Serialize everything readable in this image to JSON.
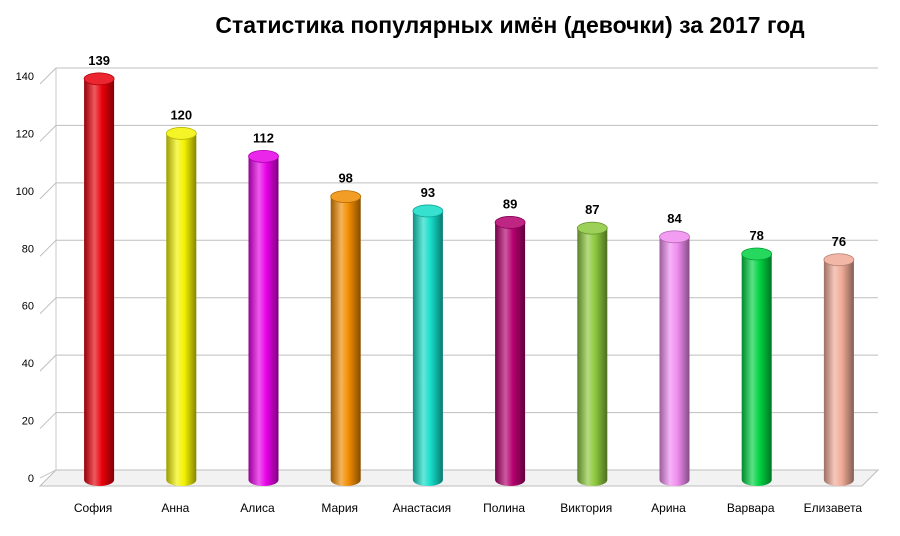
{
  "chart_data": {
    "type": "bar",
    "title": "Статистика популярных имён (девочки) за 2017 год",
    "xlabel": "",
    "ylabel": "",
    "ylim": [
      0,
      140
    ],
    "yticks": [
      "0",
      "20",
      "40",
      "60",
      "80",
      "100",
      "120",
      "140"
    ],
    "grid": true,
    "style": "3d-cylinder",
    "categories": [
      "София",
      "Анна",
      "Алиса",
      "Мария",
      "Анастасия",
      "Полина",
      "Виктория",
      "Арина",
      "Варвара",
      "Елизавета"
    ],
    "values": [
      139,
      120,
      112,
      98,
      93,
      89,
      87,
      84,
      78,
      76
    ],
    "value_labels": [
      "139",
      "120",
      "112",
      "98",
      "93",
      "89",
      "87",
      "84",
      "78",
      "76"
    ],
    "colors": [
      "#e8000b",
      "#f2f200",
      "#e600e6",
      "#f08c00",
      "#14dcc8",
      "#b4006e",
      "#8cc83c",
      "#f08cf0",
      "#00d241",
      "#f0aa96"
    ]
  }
}
